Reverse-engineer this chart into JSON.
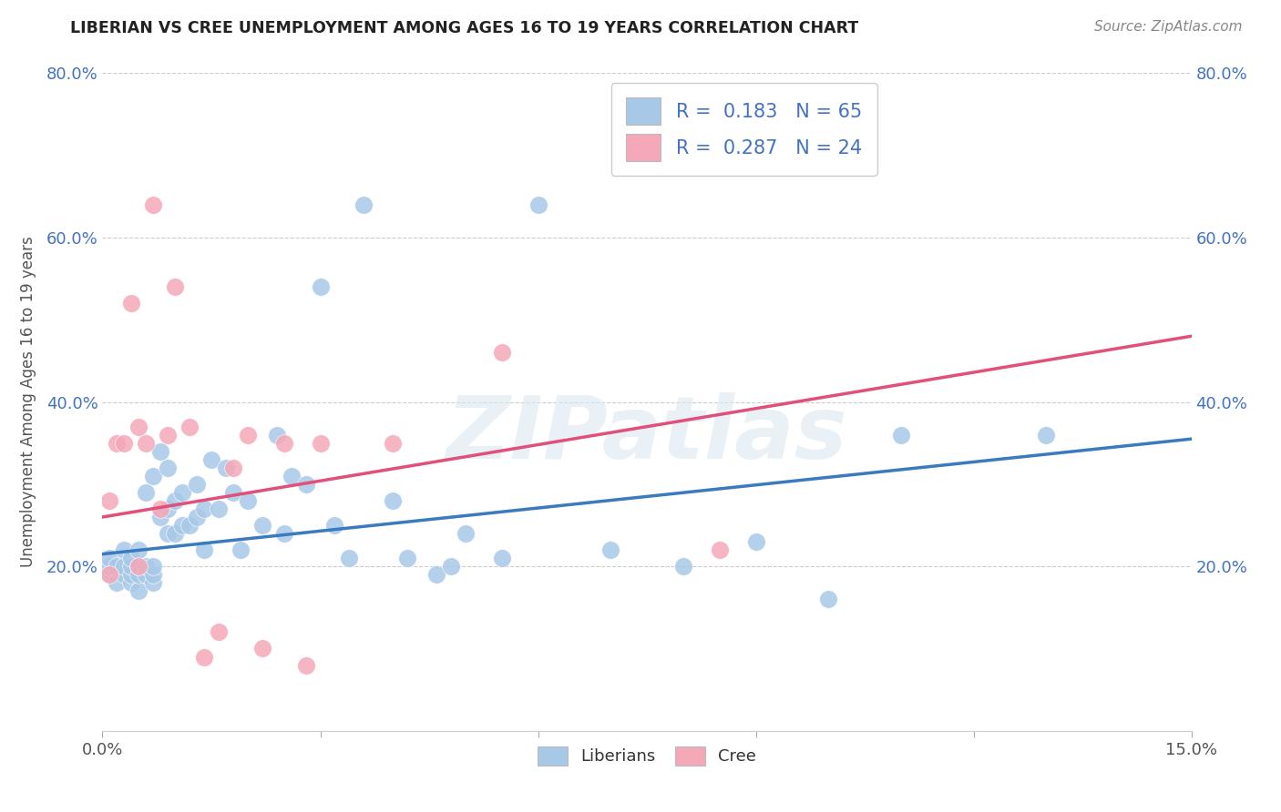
{
  "title": "LIBERIAN VS CREE UNEMPLOYMENT AMONG AGES 16 TO 19 YEARS CORRELATION CHART",
  "source": "Source: ZipAtlas.com",
  "ylabel": "Unemployment Among Ages 16 to 19 years",
  "xlim": [
    0,
    0.15
  ],
  "ylim": [
    0,
    0.8
  ],
  "xticks": [
    0.0,
    0.03,
    0.06,
    0.09,
    0.12,
    0.15
  ],
  "xticklabels": [
    "0.0%",
    "",
    "",
    "",
    "",
    "15.0%"
  ],
  "ytick_vals": [
    0.0,
    0.2,
    0.4,
    0.6,
    0.8
  ],
  "ytick_labels": [
    "",
    "20.0%",
    "40.0%",
    "60.0%",
    "80.0%"
  ],
  "liberian_R": 0.183,
  "liberian_N": 65,
  "cree_R": 0.287,
  "cree_N": 24,
  "liberian_color": "#a8c8e8",
  "liberian_line_color": "#3a7abf",
  "cree_color": "#f4a8b8",
  "cree_line_color": "#e0507a",
  "watermark": "ZIPatlas",
  "tick_color": "#4472c4",
  "liberian_x": [
    0.001,
    0.001,
    0.001,
    0.002,
    0.002,
    0.003,
    0.003,
    0.003,
    0.004,
    0.004,
    0.004,
    0.004,
    0.005,
    0.005,
    0.005,
    0.005,
    0.006,
    0.006,
    0.006,
    0.007,
    0.007,
    0.007,
    0.007,
    0.008,
    0.008,
    0.009,
    0.009,
    0.009,
    0.01,
    0.01,
    0.011,
    0.011,
    0.012,
    0.013,
    0.013,
    0.014,
    0.014,
    0.015,
    0.016,
    0.017,
    0.018,
    0.019,
    0.02,
    0.022,
    0.024,
    0.025,
    0.026,
    0.028,
    0.03,
    0.032,
    0.034,
    0.036,
    0.04,
    0.042,
    0.046,
    0.048,
    0.05,
    0.055,
    0.06,
    0.07,
    0.08,
    0.09,
    0.1,
    0.11,
    0.13
  ],
  "liberian_y": [
    0.19,
    0.2,
    0.21,
    0.18,
    0.2,
    0.19,
    0.2,
    0.22,
    0.18,
    0.19,
    0.2,
    0.21,
    0.17,
    0.19,
    0.2,
    0.22,
    0.19,
    0.2,
    0.29,
    0.18,
    0.19,
    0.2,
    0.31,
    0.26,
    0.34,
    0.24,
    0.27,
    0.32,
    0.24,
    0.28,
    0.25,
    0.29,
    0.25,
    0.26,
    0.3,
    0.22,
    0.27,
    0.33,
    0.27,
    0.32,
    0.29,
    0.22,
    0.28,
    0.25,
    0.36,
    0.24,
    0.31,
    0.3,
    0.54,
    0.25,
    0.21,
    0.64,
    0.28,
    0.21,
    0.19,
    0.2,
    0.24,
    0.21,
    0.64,
    0.22,
    0.2,
    0.23,
    0.16,
    0.36,
    0.36
  ],
  "cree_x": [
    0.001,
    0.001,
    0.002,
    0.003,
    0.004,
    0.005,
    0.005,
    0.006,
    0.007,
    0.008,
    0.009,
    0.01,
    0.012,
    0.014,
    0.016,
    0.018,
    0.02,
    0.022,
    0.025,
    0.028,
    0.03,
    0.04,
    0.055,
    0.085
  ],
  "cree_y": [
    0.19,
    0.28,
    0.35,
    0.35,
    0.52,
    0.2,
    0.37,
    0.35,
    0.64,
    0.27,
    0.36,
    0.54,
    0.37,
    0.09,
    0.12,
    0.32,
    0.36,
    0.1,
    0.35,
    0.08,
    0.35,
    0.35,
    0.46,
    0.22
  ],
  "lib_line_x0": 0.0,
  "lib_line_y0": 0.215,
  "lib_line_x1": 0.15,
  "lib_line_y1": 0.355,
  "cree_line_x0": 0.0,
  "cree_line_y0": 0.26,
  "cree_line_x1": 0.15,
  "cree_line_y1": 0.48
}
